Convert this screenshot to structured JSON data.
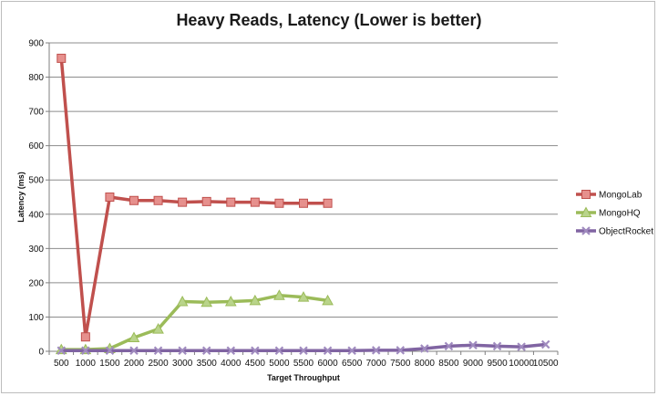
{
  "chart_data": {
    "type": "line",
    "title": "Heavy Reads, Latency (Lower is better)",
    "xlabel": "Target Throughput",
    "ylabel": "Latency (ms)",
    "categories": [
      "500",
      "1000",
      "1500",
      "2000",
      "2500",
      "3000",
      "3500",
      "4000",
      "4500",
      "5000",
      "5500",
      "6000",
      "6500",
      "7000",
      "7500",
      "8000",
      "8500",
      "9000",
      "9500",
      "10000",
      "10500"
    ],
    "ylim": [
      0,
      900
    ],
    "yticks": [
      0,
      100,
      200,
      300,
      400,
      500,
      600,
      700,
      800,
      900
    ],
    "grid": true,
    "legend_position": "right",
    "series": [
      {
        "name": "MongoLab",
        "color": "#c0504d",
        "fill": "#e6908d",
        "marker": "square",
        "values": [
          855,
          42,
          450,
          440,
          440,
          435,
          437,
          435,
          435,
          432,
          432,
          432,
          null,
          null,
          null,
          null,
          null,
          null,
          null,
          null,
          null
        ]
      },
      {
        "name": "MongoHQ",
        "color": "#9bbb59",
        "fill": "#b9d48a",
        "marker": "triangle",
        "values": [
          5,
          5,
          8,
          40,
          65,
          145,
          143,
          145,
          148,
          163,
          158,
          148,
          null,
          null,
          null,
          null,
          null,
          null,
          null,
          null,
          null
        ]
      },
      {
        "name": "ObjectRocket",
        "color": "#8064a2",
        "fill": "#a08bbf",
        "marker": "x",
        "values": [
          2,
          2,
          2,
          2,
          2,
          2,
          2,
          2,
          2,
          2,
          2,
          2,
          2,
          3,
          3,
          8,
          15,
          18,
          15,
          13,
          20
        ]
      }
    ]
  }
}
